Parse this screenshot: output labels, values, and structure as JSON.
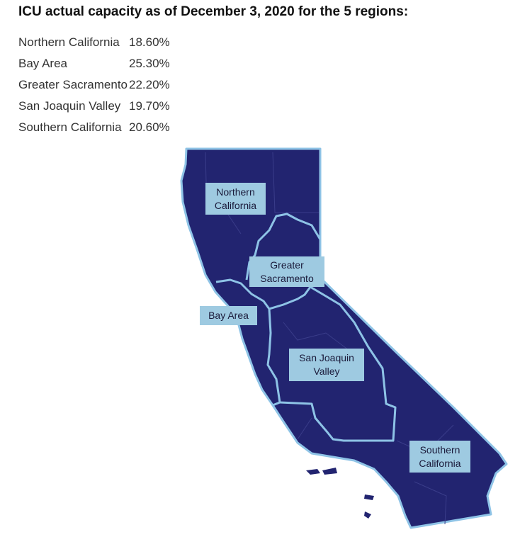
{
  "title": "ICU actual capacity as of December 3, 2020 for the 5 regions:",
  "table": {
    "rows": [
      [
        "Northern California",
        "18.60%"
      ],
      [
        "Bay Area",
        "25.30%"
      ],
      [
        "Greater Sacramento",
        "22.20%"
      ],
      [
        "San Joaquin Valley",
        "19.70%"
      ],
      [
        "Southern California",
        "20.60%"
      ]
    ]
  },
  "map": {
    "labels": [
      "Northern California",
      "Greater Sacramento",
      "Bay Area",
      "San Joaquin Valley",
      "Southern California"
    ]
  }
}
